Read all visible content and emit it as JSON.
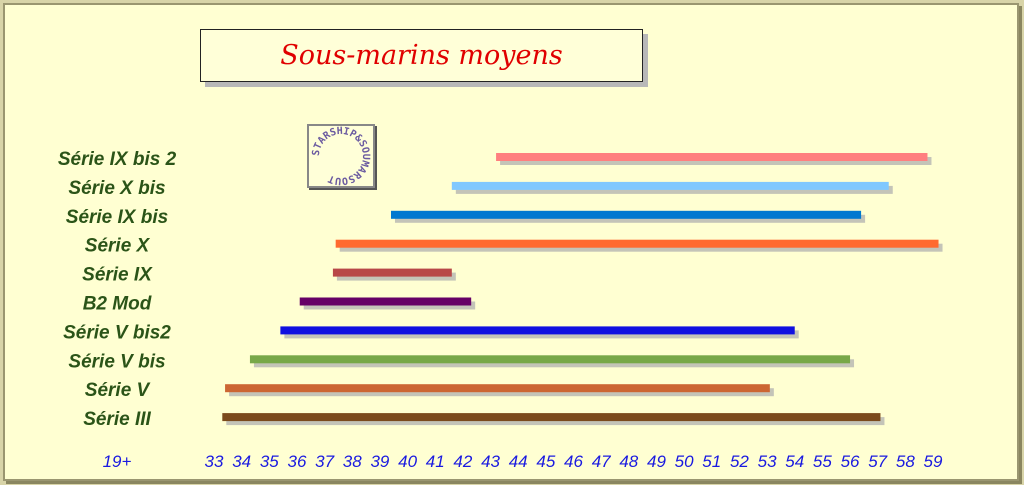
{
  "chart_data": {
    "type": "bar",
    "orientation": "horizontal-range",
    "title": "Sous-marins moyens",
    "x_tick_labels": [
      "19+",
      "33",
      "34",
      "35",
      "36",
      "37",
      "38",
      "39",
      "40",
      "41",
      "42",
      "43",
      "44",
      "45",
      "46",
      "47",
      "48",
      "49",
      "50",
      "51",
      "52",
      "53",
      "54",
      "55",
      "56",
      "57",
      "58",
      "59"
    ],
    "xlim": [
      33,
      59
    ],
    "grid": false,
    "series": [
      {
        "name": "Série IX bis 2",
        "start": 43.2,
        "end": 58.8,
        "color": "#ff7f7f"
      },
      {
        "name": "Série X bis",
        "start": 41.6,
        "end": 57.4,
        "color": "#80c8ff"
      },
      {
        "name": "Série IX bis",
        "start": 39.4,
        "end": 56.4,
        "color": "#0078d0"
      },
      {
        "name": "Série X",
        "start": 37.4,
        "end": 59.2,
        "color": "#ff6a30"
      },
      {
        "name": "Série IX",
        "start": 37.3,
        "end": 41.6,
        "color": "#b84848"
      },
      {
        "name": "B2 Mod",
        "start": 36.1,
        "end": 42.3,
        "color": "#660066"
      },
      {
        "name": "Série V bis2",
        "start": 35.4,
        "end": 54.0,
        "color": "#1010e0"
      },
      {
        "name": "Série V bis",
        "start": 34.3,
        "end": 56.0,
        "color": "#78a848"
      },
      {
        "name": "Série V",
        "start": 33.4,
        "end": 53.1,
        "color": "#cc6633"
      },
      {
        "name": "Série III",
        "start": 33.3,
        "end": 57.1,
        "color": "#7b4a1c"
      }
    ]
  },
  "logo": {
    "text": "STARSHIP & SOUMARSOUT"
  }
}
